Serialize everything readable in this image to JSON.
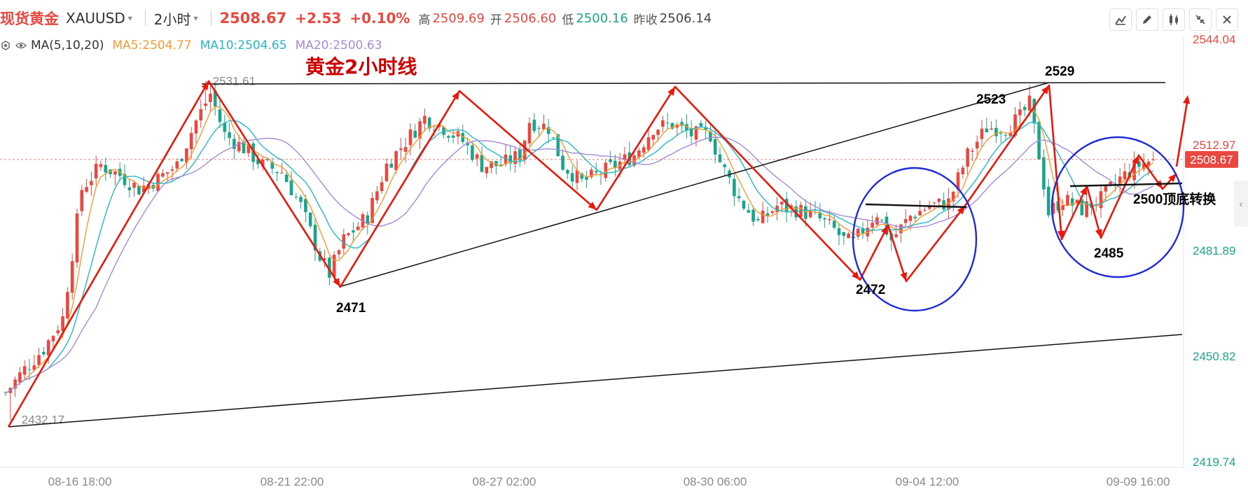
{
  "header": {
    "symbol_cn": "现货黄金",
    "symbol_code": "XAUUSD",
    "caret": "▾",
    "period": "2小时",
    "price": "2508.67",
    "change": "+2.53",
    "change_pct": "+0.10%",
    "high_label": "高",
    "high": "2509.69",
    "open_label": "开",
    "open": "2506.60",
    "low_label": "低",
    "low": "2500.16",
    "prev_label": "昨收",
    "prev": "2506.14"
  },
  "toolbar": {
    "icons": [
      "chart-type-icon",
      "draw-pen-icon",
      "indicator-icon",
      "collapse-icon",
      "close-icon"
    ]
  },
  "ma": {
    "label": "MA(5,10,20)",
    "ma5": "MA5:2504.77",
    "ma10": "MA10:2504.65",
    "ma20": "MA20:2500.63",
    "colors": {
      "ma5": "#f39c33",
      "ma10": "#29b6c6",
      "ma20": "#a58ad8"
    }
  },
  "colors": {
    "up": "#e8483f",
    "down": "#1aa58a",
    "annot": "#e8180c",
    "circle": "#1f2bd6"
  },
  "chart_data": {
    "type": "candlestick",
    "instrument": "XAUUSD",
    "timeframe": "2小时",
    "title": "黄金2小时线",
    "y_ticks": [
      {
        "value": 2544.04,
        "label": "2544.04",
        "color": "#e8483f"
      },
      {
        "value": 2512.97,
        "label": "2512.97",
        "color": "#e8483f"
      },
      {
        "value": 2481.89,
        "label": "2481.89",
        "color": "#1aa58a"
      },
      {
        "value": 2450.82,
        "label": "2450.82",
        "color": "#1aa58a"
      },
      {
        "value": 2419.74,
        "label": "2419.74",
        "color": "#1aa58a"
      }
    ],
    "current_price": {
      "value": 2508.67,
      "label": "2508.67"
    },
    "ylim": [
      2419.74,
      2544.04
    ],
    "x_ticks": [
      {
        "pos": 0.064,
        "label": "08-16 18:00"
      },
      {
        "pos": 0.234,
        "label": "08-21 22:00"
      },
      {
        "pos": 0.404,
        "label": "08-27 02:00"
      },
      {
        "pos": 0.573,
        "label": "08-30 06:00"
      },
      {
        "pos": 0.743,
        "label": "09-04 12:00"
      },
      {
        "pos": 0.912,
        "label": "09-09 16:00"
      }
    ],
    "extremes": [
      {
        "label": "2531.61",
        "idx": 42,
        "value": 2531.61
      },
      {
        "label": "2432.17",
        "idx": 1,
        "value": 2432.17
      }
    ],
    "anchors": [
      [
        0,
        2440
      ],
      [
        4,
        2447
      ],
      [
        8,
        2453
      ],
      [
        12,
        2462
      ],
      [
        16,
        2500
      ],
      [
        20,
        2507
      ],
      [
        24,
        2504
      ],
      [
        28,
        2500
      ],
      [
        32,
        2503
      ],
      [
        36,
        2507
      ],
      [
        40,
        2520
      ],
      [
        43,
        2528
      ],
      [
        46,
        2516
      ],
      [
        50,
        2512
      ],
      [
        54,
        2507
      ],
      [
        58,
        2505
      ],
      [
        62,
        2495
      ],
      [
        66,
        2480
      ],
      [
        68,
        2475
      ],
      [
        71,
        2485
      ],
      [
        76,
        2492
      ],
      [
        80,
        2507
      ],
      [
        84,
        2514
      ],
      [
        88,
        2521
      ],
      [
        92,
        2518
      ],
      [
        96,
        2514
      ],
      [
        100,
        2507
      ],
      [
        104,
        2507
      ],
      [
        108,
        2510
      ],
      [
        110,
        2520
      ],
      [
        114,
        2518
      ],
      [
        117,
        2507
      ],
      [
        121,
        2502
      ],
      [
        124,
        2504
      ],
      [
        128,
        2507
      ],
      [
        132,
        2510
      ],
      [
        136,
        2518
      ],
      [
        140,
        2519
      ],
      [
        144,
        2516
      ],
      [
        148,
        2516
      ],
      [
        150,
        2508
      ],
      [
        154,
        2497
      ],
      [
        158,
        2490
      ],
      [
        162,
        2495
      ],
      [
        166,
        2494
      ],
      [
        170,
        2492
      ],
      [
        174,
        2488
      ],
      [
        176,
        2485
      ],
      [
        178,
        2484
      ],
      [
        180,
        2488
      ],
      [
        183,
        2493
      ],
      [
        186,
        2485
      ],
      [
        190,
        2492
      ],
      [
        194,
        2495
      ],
      [
        198,
        2496
      ],
      [
        202,
        2510
      ],
      [
        206,
        2518
      ],
      [
        210,
        2518
      ],
      [
        213,
        2521
      ],
      [
        215,
        2525
      ],
      [
        217,
        2510
      ],
      [
        219,
        2493
      ],
      [
        222,
        2497
      ],
      [
        226,
        2494
      ],
      [
        230,
        2497
      ],
      [
        234,
        2503
      ],
      [
        238,
        2507
      ],
      [
        241,
        2508.67
      ]
    ],
    "candle_count": 242,
    "annotations": {
      "title": "黄金2小时线",
      "points": [
        "2529",
        "2523",
        "2471",
        "2472",
        "2485"
      ],
      "note": "2500顶底转换"
    }
  }
}
